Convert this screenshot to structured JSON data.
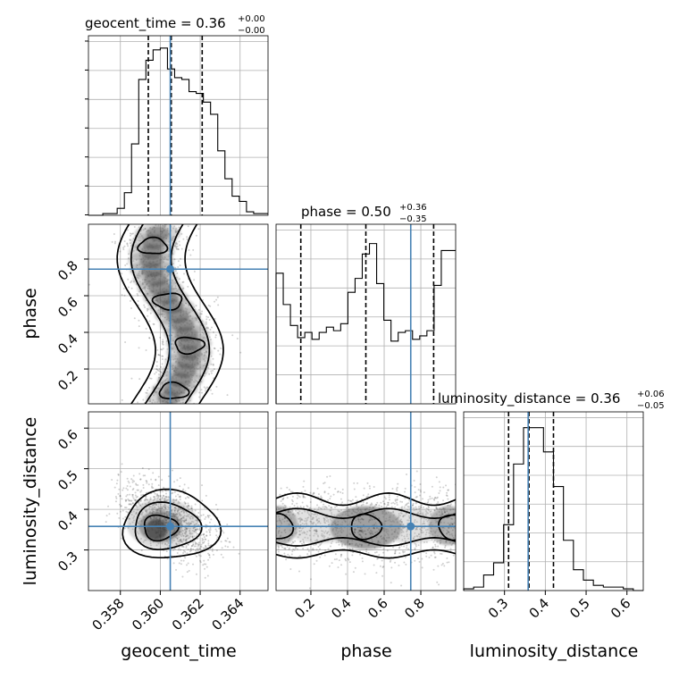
{
  "chart_data": {
    "type": "corner",
    "parameters": [
      "geocent_time",
      "phase",
      "luminosity_distance"
    ],
    "truth_color": "#4682b4",
    "titles": {
      "geocent_time": {
        "name": "geocent_time",
        "value": "0.36",
        "plus": "+0.00",
        "minus": "−0.00"
      },
      "phase": {
        "name": "phase",
        "value": "0.50",
        "plus": "+0.36",
        "minus": "−0.35"
      },
      "luminosity_distance": {
        "name": "luminosity_distance",
        "value": "0.36",
        "plus": "+0.06",
        "minus": "−0.05"
      }
    },
    "ranges": {
      "geocent_time": [
        0.3564,
        0.3654
      ],
      "phase": [
        0.01,
        0.99
      ],
      "luminosity_distance": [
        0.2,
        0.64
      ]
    },
    "truths": {
      "geocent_time": 0.3605,
      "phase": 0.745,
      "luminosity_distance": 0.358
    },
    "quantiles": {
      "geocent_time": [
        0.3594,
        0.36055,
        0.3621
      ],
      "phase": [
        0.145,
        0.5,
        0.87
      ],
      "luminosity_distance": [
        0.31,
        0.36,
        0.42
      ]
    },
    "ticks": {
      "geocent_time": {
        "values": [
          0.358,
          0.36,
          0.362,
          0.364
        ],
        "labels": [
          "0.358",
          "0.360",
          "0.362",
          "0.364"
        ]
      },
      "phase": {
        "values": [
          0.2,
          0.4,
          0.6,
          0.8
        ],
        "labels": [
          "0.2",
          "0.4",
          "0.6",
          "0.8"
        ]
      },
      "luminosity_distance": {
        "values": [
          0.3,
          0.4,
          0.5,
          0.6
        ],
        "labels": [
          "0.3",
          "0.4",
          "0.5",
          "0.6"
        ]
      }
    },
    "hist_counts": {
      "geocent_time": [
        0,
        0,
        0.01,
        0.01,
        0.04,
        0.13,
        0.41,
        0.78,
        0.89,
        0.95,
        0.96,
        0.84,
        0.79,
        0.78,
        0.71,
        0.7,
        0.65,
        0.58,
        0.37,
        0.21,
        0.11,
        0.08,
        0.02,
        0.01,
        0.01
      ],
      "phase": [
        0.75,
        0.57,
        0.45,
        0.38,
        0.41,
        0.37,
        0.41,
        0.44,
        0.42,
        0.46,
        0.64,
        0.72,
        0.86,
        0.92,
        0.69,
        0.48,
        0.36,
        0.41,
        0.42,
        0.37,
        0.39,
        0.42,
        0.68,
        0.88,
        0.88
      ],
      "luminosity_distance": [
        0.01,
        0.02,
        0.09,
        0.16,
        0.38,
        0.73,
        0.94,
        0.94,
        0.8,
        0.6,
        0.29,
        0.12,
        0.06,
        0.03,
        0.02,
        0.02,
        0.01,
        0.0
      ]
    }
  }
}
